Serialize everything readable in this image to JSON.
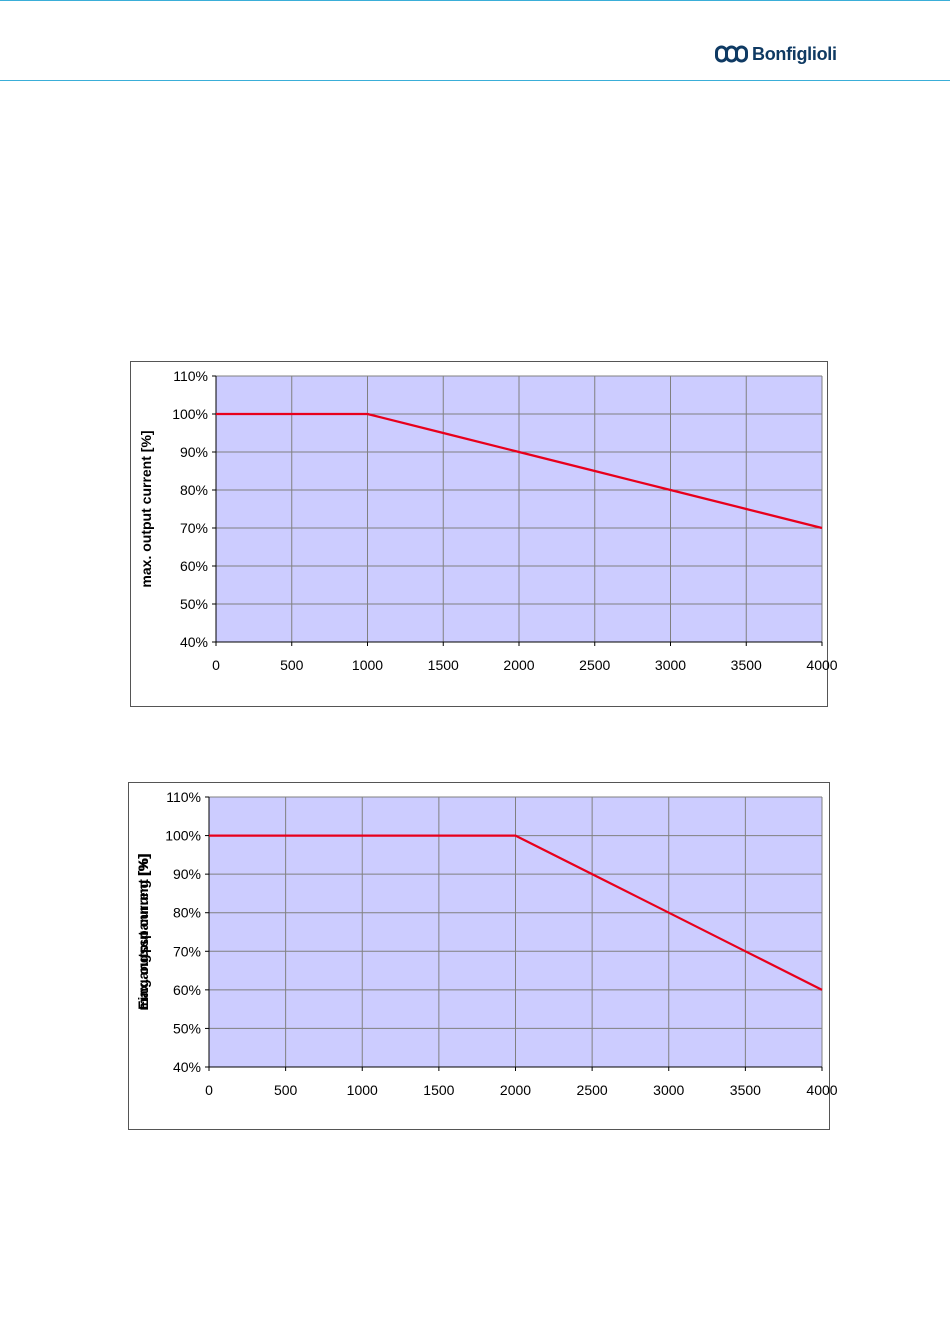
{
  "header": {
    "brand": "Bonfiglioli",
    "colors": {
      "rule": "#3aaed8",
      "brand": "#0f3a63"
    }
  },
  "chart_data": [
    {
      "type": "line",
      "title": "",
      "xlabel": "",
      "ylabel": "max. output current [%]",
      "x_ticks": [
        "0",
        "500",
        "1000",
        "1500",
        "2000",
        "2500",
        "3000",
        "3500",
        "4000"
      ],
      "y_ticks": [
        "40%",
        "50%",
        "60%",
        "70%",
        "80%",
        "90%",
        "100%",
        "110%"
      ],
      "xlim": [
        0,
        4000
      ],
      "ylim": [
        40,
        110
      ],
      "grid": true,
      "legend": "none",
      "plot_background": "#ccccff",
      "series": [
        {
          "color": "#e8001c",
          "x": [
            0,
            1000,
            1500,
            2000,
            2500,
            3000,
            3500,
            4000
          ],
          "y": [
            100,
            100,
            95,
            90,
            85,
            80,
            75,
            70
          ]
        }
      ]
    },
    {
      "type": "line",
      "title": "",
      "xlabel": "",
      "ylabel": "max. output current [%]",
      "ylabel_overlay": "Eingangsspannung [%]",
      "x_ticks": [
        "0",
        "500",
        "1000",
        "1500",
        "2000",
        "2500",
        "3000",
        "3500",
        "4000"
      ],
      "y_ticks": [
        "40%",
        "50%",
        "60%",
        "70%",
        "80%",
        "90%",
        "100%",
        "110%"
      ],
      "xlim": [
        0,
        4000
      ],
      "ylim": [
        40,
        110
      ],
      "grid": true,
      "legend": "none",
      "plot_background": "#ccccff",
      "series": [
        {
          "color": "#e8001c",
          "x": [
            0,
            2000,
            2500,
            3000,
            3500,
            4000
          ],
          "y": [
            100,
            100,
            90,
            80,
            70,
            60
          ]
        }
      ]
    }
  ]
}
